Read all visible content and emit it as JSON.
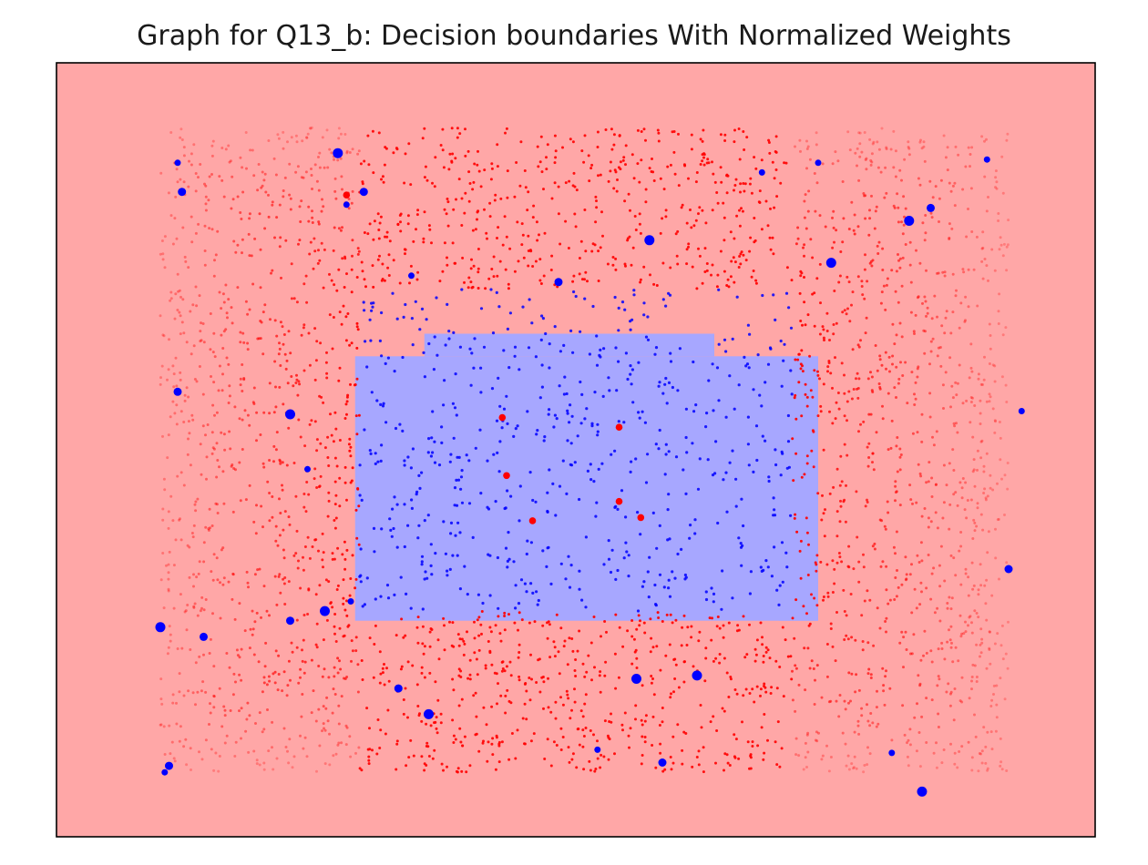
{
  "chart_data": {
    "type": "scatter",
    "title": "Graph for Q13_b: Decision boundaries With Normalized Weights",
    "xlabel": "",
    "ylabel": "",
    "xlim": [
      -1.2,
      1.2
    ],
    "ylim": [
      -1.2,
      1.2
    ],
    "xticks": [],
    "yticks": [],
    "grid": false,
    "colors": {
      "region_class_0": "#ffa7a7",
      "region_class_1": "#a7a7ff",
      "class_0": "#ff0000",
      "class_1": "#0000ff",
      "frame": "#000000"
    },
    "decision_regions": [
      {
        "class": 0,
        "x0": -1.2,
        "x1": 1.2,
        "y0": -1.2,
        "y1": 1.2
      },
      {
        "class": 1,
        "x0": -0.51,
        "x1": 0.56,
        "y0": -0.53,
        "y1": 0.29
      },
      {
        "class": 1,
        "x0": -0.35,
        "x1": 0.32,
        "y0": 0.29,
        "y1": 0.36
      },
      {
        "class": 1,
        "x0": 0.47,
        "x1": 0.56,
        "y0": -0.44,
        "y1": -0.53
      }
    ],
    "sample_region": {
      "x": [
        -0.96,
        1.0
      ],
      "y": [
        -1.0,
        1.0
      ],
      "class_1_box": {
        "x": [
          -0.5,
          0.5
        ],
        "y": [
          -0.5,
          0.5
        ]
      }
    },
    "large_weight_points": {
      "class_1": [
        [
          -0.92,
          0.89
        ],
        [
          -0.91,
          0.8
        ],
        [
          -0.55,
          0.92
        ],
        [
          -0.38,
          0.54
        ],
        [
          -0.04,
          0.52
        ],
        [
          0.17,
          0.65
        ],
        [
          0.56,
          0.89
        ],
        [
          0.82,
          0.75
        ],
        [
          0.77,
          0.71
        ],
        [
          0.95,
          0.9
        ],
        [
          -0.92,
          0.18
        ],
        [
          -0.66,
          0.11
        ],
        [
          -0.62,
          -0.06
        ],
        [
          -0.66,
          -0.53
        ],
        [
          -0.58,
          -0.5
        ],
        [
          -0.52,
          -0.47
        ],
        [
          -0.86,
          -0.58
        ],
        [
          -0.96,
          -0.55
        ],
        [
          1.03,
          0.12
        ],
        [
          1.0,
          -0.37
        ],
        [
          0.28,
          -0.7
        ],
        [
          0.73,
          -0.94
        ],
        [
          -0.41,
          -0.74
        ],
        [
          -0.34,
          -0.82
        ],
        [
          -0.95,
          -1.0
        ],
        [
          -0.94,
          -0.98
        ],
        [
          0.8,
          -1.06
        ],
        [
          0.05,
          -0.93
        ],
        [
          0.2,
          -0.97
        ],
        [
          0.14,
          -0.71
        ],
        [
          -0.53,
          0.76
        ],
        [
          -0.49,
          0.8
        ],
        [
          0.59,
          0.58
        ],
        [
          0.43,
          0.86
        ]
      ],
      "class_0": [
        [
          -0.17,
          0.1
        ],
        [
          0.1,
          0.07
        ],
        [
          -0.16,
          -0.08
        ],
        [
          0.1,
          -0.16
        ],
        [
          -0.1,
          -0.22
        ],
        [
          0.15,
          -0.21
        ],
        [
          -0.53,
          0.79
        ]
      ]
    }
  }
}
